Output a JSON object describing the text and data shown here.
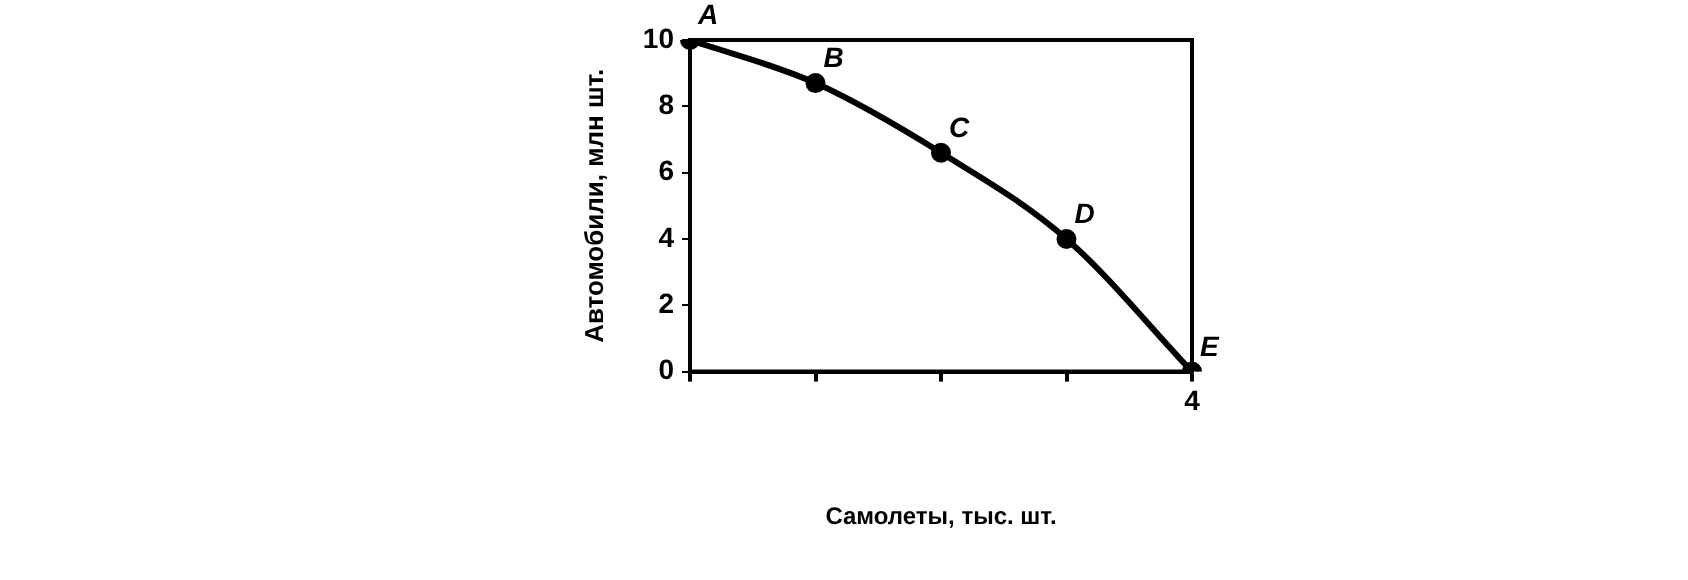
{
  "chart_data": {
    "type": "line",
    "xlabel": "Самолеты, тыс. шт.",
    "ylabel": "Автомобили, млн шт.",
    "categories": [
      null,
      null,
      null,
      null,
      "4"
    ],
    "series": [
      {
        "color": "#000000",
        "values": [
          10,
          8.7,
          6.6,
          4,
          0
        ]
      }
    ],
    "ylim": [
      0,
      10
    ],
    "yticks": [
      0,
      2,
      4,
      6,
      8,
      10
    ],
    "annotations": [
      {
        "text": "A",
        "y": 10
      },
      {
        "text": "B",
        "y": 8.7
      },
      {
        "text": "C",
        "y": 6.6
      },
      {
        "text": "D",
        "y": 4
      },
      {
        "text": "E",
        "x": "4",
        "y": 0
      }
    ],
    "marker": "circle",
    "line_style": "solid",
    "grid": false,
    "legend": false
  }
}
